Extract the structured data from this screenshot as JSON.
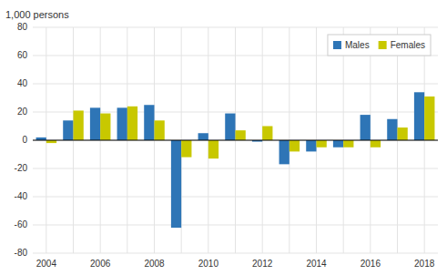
{
  "chart_data": {
    "type": "bar",
    "y_label": "1,000 persons",
    "categories": [
      "2004",
      null,
      "2006",
      null,
      "2008",
      null,
      "2010",
      null,
      "2012",
      null,
      "2014",
      null,
      "2016",
      null,
      "2018"
    ],
    "series": [
      {
        "name": "Males",
        "color": "#2E75B6",
        "values": [
          2,
          14,
          23,
          23,
          25,
          -62,
          5,
          19,
          -1,
          -17,
          -8,
          -5,
          18,
          15,
          34
        ]
      },
      {
        "name": "Females",
        "color": "#C8C800",
        "values": [
          -2,
          21,
          19,
          24,
          14,
          -12,
          -13,
          7,
          10,
          -8,
          -5,
          -5,
          -5,
          9,
          31
        ]
      }
    ],
    "ylim": [
      -80,
      80
    ],
    "yticks": [
      -80,
      -60,
      -40,
      -20,
      0,
      20,
      40,
      60,
      80
    ],
    "grid": true,
    "legend": "top-right"
  }
}
